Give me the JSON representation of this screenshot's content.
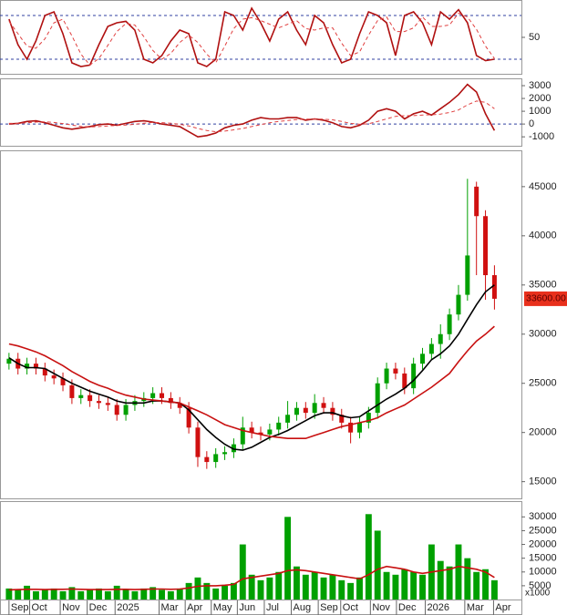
{
  "chart_data": [
    {
      "type": "line",
      "xlim": [
        -1,
        57
      ],
      "ylim": [
        0,
        100
      ],
      "yticks": [
        50
      ],
      "levels": [
        80,
        20
      ],
      "series": [
        {
          "color": "#b01010",
          "style": "solid",
          "values": [
            75,
            40,
            20,
            45,
            80,
            85,
            55,
            15,
            10,
            12,
            40,
            65,
            70,
            72,
            60,
            20,
            15,
            25,
            45,
            60,
            55,
            15,
            10,
            20,
            85,
            80,
            60,
            90,
            70,
            45,
            75,
            85,
            60,
            40,
            80,
            70,
            40,
            15,
            20,
            55,
            85,
            80,
            70,
            25,
            80,
            85,
            70,
            40,
            85,
            75,
            88,
            70,
            25,
            18,
            20
          ]
        },
        {
          "color": "#e04040",
          "style": "dashed",
          "values": [
            72,
            55,
            38,
            35,
            48,
            70,
            75,
            52,
            27,
            12,
            21,
            39,
            58,
            69,
            67,
            51,
            32,
            20,
            28,
            43,
            53,
            43,
            27,
            15,
            38,
            62,
            75,
            77,
            73,
            68,
            63,
            68,
            73,
            62,
            60,
            63,
            63,
            42,
            25,
            30,
            53,
            73,
            78,
            58,
            58,
            63,
            78,
            65,
            65,
            67,
            83,
            78,
            61,
            38,
            21
          ]
        }
      ]
    },
    {
      "type": "line",
      "xlim": [
        -1,
        57
      ],
      "ylim": [
        -1700,
        3500
      ],
      "yticks": [
        3000,
        2000,
        1000,
        0,
        -1000
      ],
      "levels": [
        0
      ],
      "series": [
        {
          "color": "#b01010",
          "style": "solid",
          "values": [
            0,
            50,
            200,
            250,
            100,
            -100,
            -300,
            -400,
            -300,
            -200,
            -50,
            0,
            -100,
            50,
            200,
            250,
            150,
            0,
            -100,
            -200,
            -600,
            -1000,
            -900,
            -700,
            -300,
            -100,
            0,
            300,
            500,
            400,
            400,
            500,
            500,
            300,
            400,
            300,
            100,
            -200,
            -300,
            -100,
            300,
            1000,
            1200,
            1000,
            400,
            800,
            1000,
            700,
            1200,
            1700,
            2300,
            3100,
            2500,
            800,
            -500
          ]
        },
        {
          "color": "#e04040",
          "style": "dashed",
          "values": [
            50,
            50,
            100,
            150,
            170,
            120,
            40,
            -80,
            -180,
            -230,
            -200,
            -150,
            -110,
            -80,
            -20,
            60,
            120,
            110,
            60,
            -20,
            -150,
            -350,
            -500,
            -600,
            -550,
            -450,
            -350,
            -200,
            -50,
            100,
            200,
            280,
            350,
            380,
            380,
            380,
            330,
            200,
            50,
            -20,
            20,
            200,
            400,
            600,
            650,
            660,
            700,
            720,
            780,
            900,
            1100,
            1500,
            1800,
            1700,
            1200
          ]
        }
      ]
    },
    {
      "type": "candlestick",
      "xlim": [
        -1,
        57
      ],
      "ylim": [
        13300,
        48600
      ],
      "yticks": [
        45000,
        40000,
        35000,
        30000,
        25000,
        20000,
        15000
      ],
      "up_color": "#00a000",
      "down_color": "#d01010",
      "open": [
        27000,
        27500,
        26500,
        27000,
        26500,
        25800,
        25500,
        24800,
        23500,
        23800,
        23200,
        23000,
        22800,
        21800,
        22800,
        23200,
        23500,
        24000,
        23500,
        23000,
        22500,
        20500,
        17500,
        17000,
        17800,
        18000,
        18800,
        20500,
        20000,
        19800,
        20300,
        21000,
        21800,
        22500,
        22000,
        23000,
        22500,
        21800,
        21000,
        20000,
        21000,
        22000,
        25000,
        26500,
        26000,
        24500,
        27000,
        28000,
        29000,
        30000,
        32000,
        34000,
        45000,
        42000,
        36000
      ],
      "high": [
        28100,
        28100,
        27600,
        27600,
        27100,
        26400,
        26100,
        25400,
        24400,
        24400,
        23800,
        23600,
        23400,
        23400,
        23800,
        24100,
        24600,
        24600,
        24100,
        23600,
        23100,
        21100,
        18100,
        18400,
        18600,
        19400,
        21600,
        21100,
        20600,
        20900,
        21600,
        23200,
        23100,
        23100,
        23900,
        23600,
        23100,
        22400,
        21600,
        21600,
        22600,
        25600,
        27100,
        27100,
        26600,
        27600,
        28600,
        29600,
        31000,
        32600,
        35000,
        45800,
        45500,
        42600,
        37000
      ],
      "low": [
        26400,
        25900,
        25900,
        25900,
        25200,
        24900,
        24200,
        22900,
        22900,
        22600,
        22400,
        22200,
        21200,
        21200,
        22200,
        22600,
        22900,
        22900,
        22400,
        21900,
        19900,
        16500,
        16300,
        16400,
        17200,
        17400,
        18200,
        19400,
        19200,
        19200,
        19700,
        20400,
        21200,
        21400,
        21400,
        21900,
        21200,
        20400,
        18900,
        19400,
        20400,
        21400,
        24400,
        25400,
        23900,
        23900,
        26400,
        27400,
        27500,
        29400,
        31400,
        33400,
        36000,
        33500,
        32500
      ],
      "close": [
        27500,
        26500,
        27000,
        26500,
        25800,
        25500,
        24800,
        23500,
        23800,
        23200,
        23000,
        22800,
        21800,
        22800,
        23200,
        23500,
        24000,
        23500,
        23000,
        22500,
        20500,
        17500,
        17000,
        17800,
        18000,
        18800,
        20500,
        20000,
        19800,
        20300,
        21000,
        21800,
        22500,
        22000,
        23000,
        22500,
        21800,
        21000,
        20000,
        21000,
        22000,
        25000,
        26500,
        26000,
        24500,
        27000,
        28000,
        29000,
        30000,
        32000,
        34000,
        38000,
        42000,
        36000,
        33600
      ],
      "price_tag": {
        "value": 33600,
        "label": "33600.00"
      },
      "price_tag_color": "#e8301c",
      "series": [
        {
          "color": "#000000",
          "values": [
            27600,
            27000,
            26600,
            26600,
            26500,
            26000,
            25500,
            25000,
            24600,
            24200,
            23900,
            23600,
            23200,
            23000,
            23000,
            23000,
            23200,
            23200,
            23100,
            23000,
            22300,
            21300,
            20300,
            19500,
            18800,
            18300,
            18200,
            18500,
            19000,
            19500,
            19800,
            20200,
            20700,
            21200,
            21700,
            22000,
            22000,
            21700,
            21500,
            21600,
            22200,
            22800,
            23400,
            23900,
            24500,
            25300,
            26300,
            27400,
            28000,
            28800,
            30000,
            31500,
            33000,
            34300,
            35000
          ]
        },
        {
          "color": "#c81010",
          "values": [
            29000,
            28800,
            28500,
            28200,
            27800,
            27300,
            26800,
            26200,
            25700,
            25200,
            24800,
            24500,
            24100,
            23800,
            23600,
            23400,
            23300,
            23200,
            23100,
            23000,
            22600,
            22200,
            21800,
            21300,
            20800,
            20500,
            20200,
            20000,
            19800,
            19600,
            19500,
            19400,
            19400,
            19400,
            19700,
            20000,
            20300,
            20600,
            20800,
            21000,
            21200,
            21500,
            22000,
            22400,
            22800,
            23400,
            24000,
            24600,
            25300,
            26000,
            27200,
            28300,
            29300,
            30000,
            30800
          ]
        }
      ]
    },
    {
      "type": "bar",
      "xlim": [
        -1,
        57
      ],
      "ylim": [
        0,
        35400
      ],
      "yticks": [
        30000,
        25000,
        20000,
        15000,
        10000,
        5000
      ],
      "unit_label": "x1000",
      "color": "#00a000",
      "values": [
        4000,
        3500,
        5000,
        3000,
        3500,
        4000,
        3000,
        4500,
        3000,
        3500,
        4000,
        3000,
        5000,
        3500,
        3000,
        4000,
        4500,
        3500,
        3000,
        4000,
        6000,
        8000,
        6000,
        4000,
        5000,
        6000,
        20000,
        9000,
        7000,
        8000,
        10000,
        30000,
        12000,
        9000,
        10000,
        8000,
        9000,
        7000,
        6000,
        8000,
        31000,
        25000,
        10000,
        9000,
        11000,
        10000,
        9000,
        20000,
        14000,
        12000,
        20000,
        15000,
        10000,
        11000,
        7000
      ],
      "series": [
        {
          "color": "#c81010",
          "values": [
            3500,
            3600,
            3700,
            3700,
            3600,
            3700,
            3700,
            3800,
            3700,
            3600,
            3600,
            3600,
            3700,
            3700,
            3600,
            3700,
            3800,
            3800,
            3700,
            3800,
            4200,
            4800,
            5000,
            5000,
            5200,
            5500,
            7500,
            8000,
            8500,
            9000,
            9500,
            10500,
            10800,
            10500,
            10000,
            9500,
            9000,
            8500,
            8000,
            7500,
            9000,
            11000,
            12000,
            11500,
            11000,
            10000,
            9500,
            10000,
            10500,
            11000,
            12000,
            11500,
            11000,
            10000,
            8000
          ]
        }
      ],
      "xticks": [
        {
          "value": 0,
          "label": "Sep"
        },
        {
          "value": 2.3,
          "label": "Oct"
        },
        {
          "value": 5.7,
          "label": "Nov"
        },
        {
          "value": 8.7,
          "label": "Dec"
        },
        {
          "value": 11.8,
          "label": "2025"
        },
        {
          "value": 16.7,
          "label": "Mar"
        },
        {
          "value": 19.6,
          "label": "Apr"
        },
        {
          "value": 22.5,
          "label": "May"
        },
        {
          "value": 25.4,
          "label": "Jun"
        },
        {
          "value": 28.4,
          "label": "Jul"
        },
        {
          "value": 31.4,
          "label": "Aug"
        },
        {
          "value": 34.4,
          "label": "Sep"
        },
        {
          "value": 36.9,
          "label": "Oct"
        },
        {
          "value": 40.2,
          "label": "Nov"
        },
        {
          "value": 43.1,
          "label": "Dec"
        },
        {
          "value": 46.3,
          "label": "2026"
        },
        {
          "value": 50.7,
          "label": "Mar"
        },
        {
          "value": 53.9,
          "label": "Apr"
        }
      ]
    }
  ]
}
